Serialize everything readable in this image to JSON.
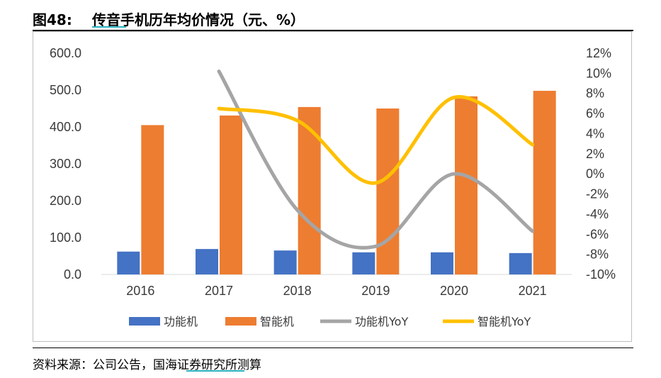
{
  "figure": {
    "number": "图48:",
    "title": "传音手机历年均价情况（元、%）",
    "source": "资料来源：公司公告，国海证券研究所测算"
  },
  "chart_data": {
    "type": "bar",
    "categories": [
      "2016",
      "2017",
      "2018",
      "2019",
      "2020",
      "2021"
    ],
    "series": [
      {
        "name": "功能机",
        "kind": "bar",
        "axis": "left",
        "color": "#4472c4",
        "values": [
          62,
          69,
          65,
          60,
          60,
          58
        ]
      },
      {
        "name": "智能机",
        "kind": "bar",
        "axis": "left",
        "color": "#ed7d31",
        "values": [
          405,
          431,
          454,
          450,
          483,
          498
        ]
      },
      {
        "name": "功能机YoY",
        "kind": "line",
        "axis": "right",
        "color": "#a5a5a5",
        "values": [
          null,
          10.2,
          -3.6,
          -7.2,
          0.0,
          -5.7
        ]
      },
      {
        "name": "智能机YoY",
        "kind": "line",
        "axis": "right",
        "color": "#ffc000",
        "values": [
          null,
          6.5,
          5.3,
          -0.9,
          7.6,
          2.9
        ]
      }
    ],
    "y_left": {
      "min": 0,
      "max": 600,
      "step": 100,
      "tick_labels": [
        "0.0",
        "100.0",
        "200.0",
        "300.0",
        "400.0",
        "500.0",
        "600.0"
      ]
    },
    "y_right": {
      "min": -10,
      "max": 12,
      "step": 2,
      "tick_labels": [
        "-10%",
        "-8%",
        "-6%",
        "-4%",
        "-2%",
        "0%",
        "2%",
        "4%",
        "6%",
        "8%",
        "10%",
        "12%"
      ]
    },
    "grid": false,
    "legend_position": "bottom",
    "smooth_lines": true
  }
}
